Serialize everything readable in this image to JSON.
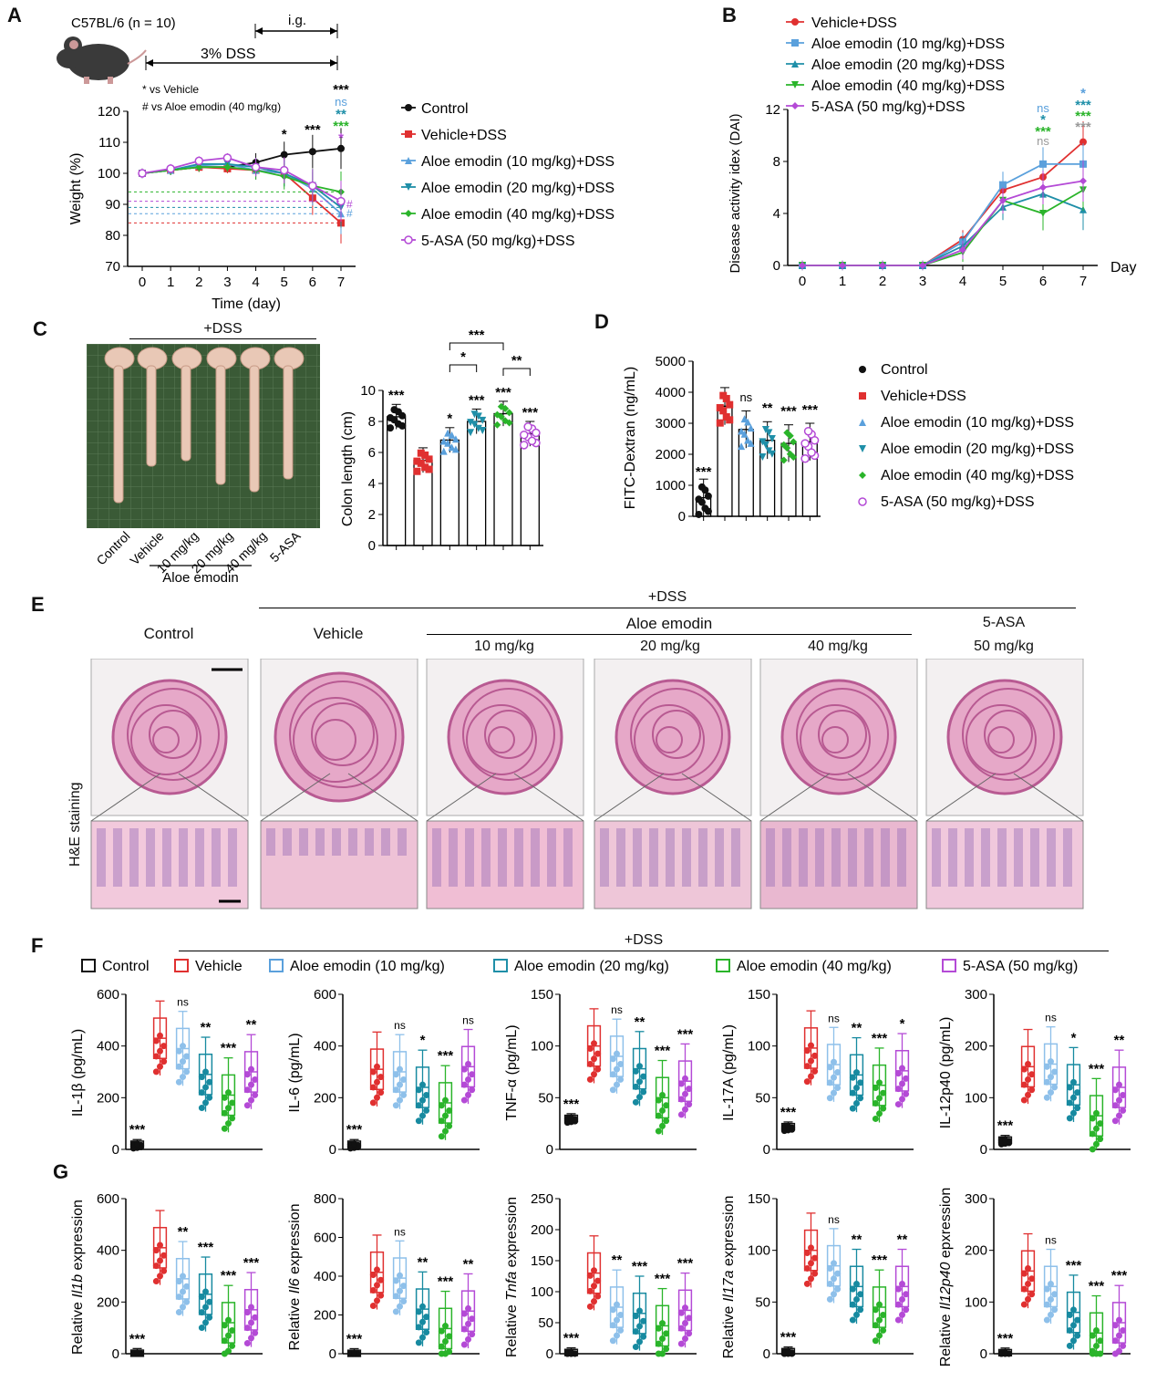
{
  "panels": {
    "A": "A",
    "B": "B",
    "C": "C",
    "D": "D",
    "E": "E",
    "F": "F",
    "G": "G"
  },
  "colors": {
    "control": "#111111",
    "vehicle": "#e03030",
    "ae10": "#5aa0dc",
    "ae20": "#1f8fa8",
    "ae40": "#2ab42a",
    "asa": "#b44ad6",
    "ae10_light": "#8ec0ea",
    "ae20_dark": "#178aa0"
  },
  "panel_a": {
    "strain": "C57BL/6 (n = 10)",
    "ig": "i.g.",
    "dss": "3% DSS",
    "vs1": "* vs  Vehicle",
    "vs2": "# vs  Aloe emodin (40 mg/kg)",
    "legend": [
      "Control",
      "Vehicle+DSS",
      "Aloe emodin (10 mg/kg)+DSS",
      "Aloe emodin (20 mg/kg)+DSS",
      "Aloe emodin (40 mg/kg)+DSS",
      "5-ASA (50 mg/kg)+DSS"
    ]
  },
  "panel_b": {
    "legend": [
      "Vehicle+DSS",
      "Aloe emodin (10 mg/kg)+DSS",
      "Aloe emodin (20 mg/kg)+DSS",
      "Aloe emodin (40 mg/kg)+DSS",
      "5-ASA (50 mg/kg)+DSS"
    ]
  },
  "panel_c": {
    "dss": "+DSS",
    "groups": [
      "Control",
      "Vehicle",
      "10 mg/kg",
      "20 mg/kg",
      "40 mg/kg",
      "5-ASA"
    ],
    "aloe": "Aloe emodin"
  },
  "panel_d": {
    "legend": [
      "Control",
      "Vehicle+DSS",
      "Aloe emodin (10 mg/kg)+DSS",
      "Aloe emodin (20 mg/kg)+DSS",
      "Aloe emodin (40 mg/kg)+DSS",
      "5-ASA (50 mg/kg)+DSS"
    ]
  },
  "panel_e": {
    "dss": "+DSS",
    "control": "Control",
    "vehicle": "Vehicle",
    "aloe": "Aloe emodin",
    "d10": "10 mg/kg",
    "d20": "20 mg/kg",
    "d40": "40 mg/kg",
    "asa": "5-ASA",
    "d50": "50 mg/kg",
    "stain": "H&E staining"
  },
  "panel_f": {
    "dss": "+DSS",
    "legend": [
      "Control",
      "Vehicle",
      "Aloe emodin (10 mg/kg)",
      "Aloe emodin (20 mg/kg)",
      "Aloe emodin (40 mg/kg)",
      "5-ASA (50 mg/kg)"
    ]
  },
  "chart_data": [
    {
      "id": "A",
      "type": "line",
      "xlabel": "Time (day)",
      "ylabel": "Weight (%)",
      "ylim": [
        70,
        120
      ],
      "x": [
        0,
        1,
        2,
        3,
        4,
        5,
        6,
        7
      ],
      "yticks": [
        70,
        80,
        90,
        100,
        110,
        120
      ],
      "series": [
        {
          "name": "Control",
          "values": [
            100,
            101,
            102,
            102,
            103.5,
            106,
            107,
            108
          ]
        },
        {
          "name": "Vehicle+DSS",
          "values": [
            100,
            101,
            102,
            101.5,
            101,
            100,
            92,
            84
          ]
        },
        {
          "name": "Aloe emodin (10 mg/kg)+DSS",
          "values": [
            100,
            101,
            102.5,
            103,
            101,
            100,
            95,
            87
          ]
        },
        {
          "name": "Aloe emodin (20 mg/kg)+DSS",
          "values": [
            100,
            101,
            103,
            103,
            102,
            100,
            96,
            89
          ]
        },
        {
          "name": "Aloe emodin (40 mg/kg)+DSS",
          "values": [
            100,
            101,
            102,
            102,
            101,
            99,
            96,
            94
          ]
        },
        {
          "name": "5-ASA (50 mg/kg)+DSS",
          "values": [
            100,
            101.5,
            104,
            105,
            102,
            101,
            96,
            91
          ]
        }
      ],
      "annotations": [
        "*",
        "***",
        "***",
        "ns",
        "**",
        "***",
        "*",
        "#",
        "#"
      ]
    },
    {
      "id": "B",
      "type": "line",
      "xlabel": "Day",
      "ylabel": "Disease activity idex (DAI)",
      "ylim": [
        0,
        12
      ],
      "x": [
        0,
        1,
        2,
        3,
        4,
        5,
        6,
        7
      ],
      "yticks": [
        0,
        4,
        8,
        12
      ],
      "series": [
        {
          "name": "Vehicle+DSS",
          "values": [
            0,
            0,
            0,
            0,
            2,
            5.8,
            6.8,
            9.5
          ]
        },
        {
          "name": "Aloe emodin (10 mg/kg)+DSS",
          "values": [
            0,
            0,
            0,
            0,
            1.8,
            6.2,
            7.8,
            7.8
          ]
        },
        {
          "name": "Aloe emodin (20 mg/kg)+DSS",
          "values": [
            0,
            0,
            0,
            0,
            1.5,
            4.5,
            5.5,
            4.3
          ]
        },
        {
          "name": "Aloe emodin (40 mg/kg)+DSS",
          "values": [
            0,
            0,
            0,
            0,
            1,
            5,
            4,
            5.8
          ]
        },
        {
          "name": "5-ASA (50 mg/kg)+DSS",
          "values": [
            0,
            0,
            0,
            0,
            1.2,
            5,
            6,
            6.5
          ]
        }
      ],
      "annotations": [
        "ns",
        "*",
        "***",
        "ns",
        "*",
        "***",
        "***",
        "***"
      ]
    },
    {
      "id": "C",
      "type": "bar",
      "ylabel": "Colon length (cm)",
      "ylim": [
        0,
        10
      ],
      "yticks": [
        0,
        2,
        4,
        6,
        8,
        10
      ],
      "categories": [
        "Control",
        "Vehicle",
        "Aloe emodin (10 mg/kg)",
        "Aloe emodin (20 mg/kg)",
        "Aloe emodin (40 mg/kg)",
        "5-ASA (50 mg/kg)"
      ],
      "values": [
        8.3,
        5.5,
        6.8,
        8.0,
        8.5,
        7.2
      ],
      "annotations": [
        "***",
        "",
        "*",
        "***",
        "***",
        "***",
        "*",
        "***",
        "**"
      ]
    },
    {
      "id": "D",
      "type": "bar",
      "ylabel": "FITC-Dextran (ng/mL)",
      "ylim": [
        0,
        5000
      ],
      "yticks": [
        0,
        1000,
        2000,
        3000,
        4000,
        5000
      ],
      "categories": [
        "Control",
        "Vehicle+DSS",
        "Aloe emodin (10 mg/kg)+DSS",
        "Aloe emodin (20 mg/kg)+DSS",
        "Aloe emodin (40 mg/kg)+DSS",
        "5-ASA (50 mg/kg)+DSS"
      ],
      "values": [
        600,
        3550,
        2800,
        2450,
        2350,
        2400
      ],
      "annotations": [
        "***",
        "",
        "ns",
        "**",
        "***",
        "***"
      ]
    },
    {
      "id": "F1",
      "type": "box",
      "ylabel": "IL-1β (pg/mL)",
      "ylim": [
        0,
        600
      ],
      "yticks": [
        0,
        200,
        400,
        600
      ],
      "values": [
        20,
        430,
        390,
        290,
        210,
        300
      ],
      "annotations": [
        "***",
        "",
        "ns",
        "**",
        "***",
        "**"
      ]
    },
    {
      "id": "F2",
      "type": "box",
      "ylabel": "IL-6 (pg/mL)",
      "ylim": [
        0,
        600
      ],
      "yticks": [
        0,
        200,
        400,
        600
      ],
      "values": [
        20,
        310,
        300,
        240,
        180,
        320
      ],
      "annotations": [
        "***",
        "",
        "ns",
        "*",
        "***",
        "ns"
      ]
    },
    {
      "id": "F3",
      "type": "box",
      "ylabel": "TNF-α (pg/mL)",
      "ylim": [
        0,
        150
      ],
      "yticks": [
        0,
        50,
        100,
        150
      ],
      "values": [
        30,
        100,
        90,
        78,
        50,
        66
      ],
      "annotations": [
        "***",
        "",
        "ns",
        "**",
        "***",
        "***"
      ]
    },
    {
      "id": "F4",
      "type": "box",
      "ylabel": "IL-17A (pg/mL)",
      "ylim": [
        0,
        150
      ],
      "yticks": [
        0,
        50,
        100,
        150
      ],
      "values": [
        22,
        98,
        82,
        72,
        62,
        76
      ],
      "annotations": [
        "***",
        "",
        "ns",
        "**",
        "***",
        "*"
      ]
    },
    {
      "id": "F5",
      "type": "box",
      "ylabel": "IL-12p40 (pg/mL)",
      "ylim": [
        0,
        300
      ],
      "yticks": [
        0,
        100,
        200,
        300
      ],
      "values": [
        18,
        160,
        165,
        125,
        65,
        120
      ],
      "annotations": [
        "***",
        "",
        "ns",
        "*",
        "***",
        "**"
      ]
    },
    {
      "id": "G1",
      "type": "box",
      "ylabel": "Relative Il1b expression",
      "ylim": [
        0,
        600
      ],
      "yticks": [
        0,
        200,
        400,
        600
      ],
      "values": [
        2,
        410,
        290,
        230,
        120,
        170
      ],
      "annotations": [
        "***",
        "",
        "**",
        "***",
        "***",
        "***"
      ]
    },
    {
      "id": "G2",
      "type": "box",
      "ylabel": "Relative Il6 expression",
      "ylim": [
        0,
        800
      ],
      "yticks": [
        0,
        200,
        400,
        600,
        800
      ],
      "values": [
        2,
        420,
        390,
        230,
        130,
        220
      ],
      "annotations": [
        "***",
        "",
        "ns",
        "**",
        "***",
        "**"
      ]
    },
    {
      "id": "G3",
      "type": "box",
      "ylabel": "Relative Tnfa expression",
      "ylim": [
        0,
        250
      ],
      "yticks": [
        0,
        50,
        100,
        150,
        200,
        250
      ],
      "values": [
        2,
        130,
        75,
        65,
        45,
        70
      ],
      "annotations": [
        "***",
        "",
        "**",
        "***",
        "***",
        "***"
      ]
    },
    {
      "id": "G4",
      "type": "box",
      "ylabel": "Relative Il17a expression",
      "ylim": [
        0,
        150
      ],
      "yticks": [
        0,
        50,
        100,
        150
      ],
      "values": [
        2,
        100,
        85,
        65,
        45,
        65
      ],
      "annotations": [
        "***",
        "",
        "ns",
        "**",
        "***",
        "**"
      ]
    },
    {
      "id": "G5",
      "type": "box",
      "ylabel": "Relative Il12p40 epxression",
      "ylim": [
        0,
        300
      ],
      "yticks": [
        0,
        100,
        200,
        300
      ],
      "values": [
        2,
        160,
        130,
        80,
        40,
        60
      ],
      "annotations": [
        "***",
        "",
        "ns",
        "***",
        "***",
        "***"
      ]
    }
  ]
}
